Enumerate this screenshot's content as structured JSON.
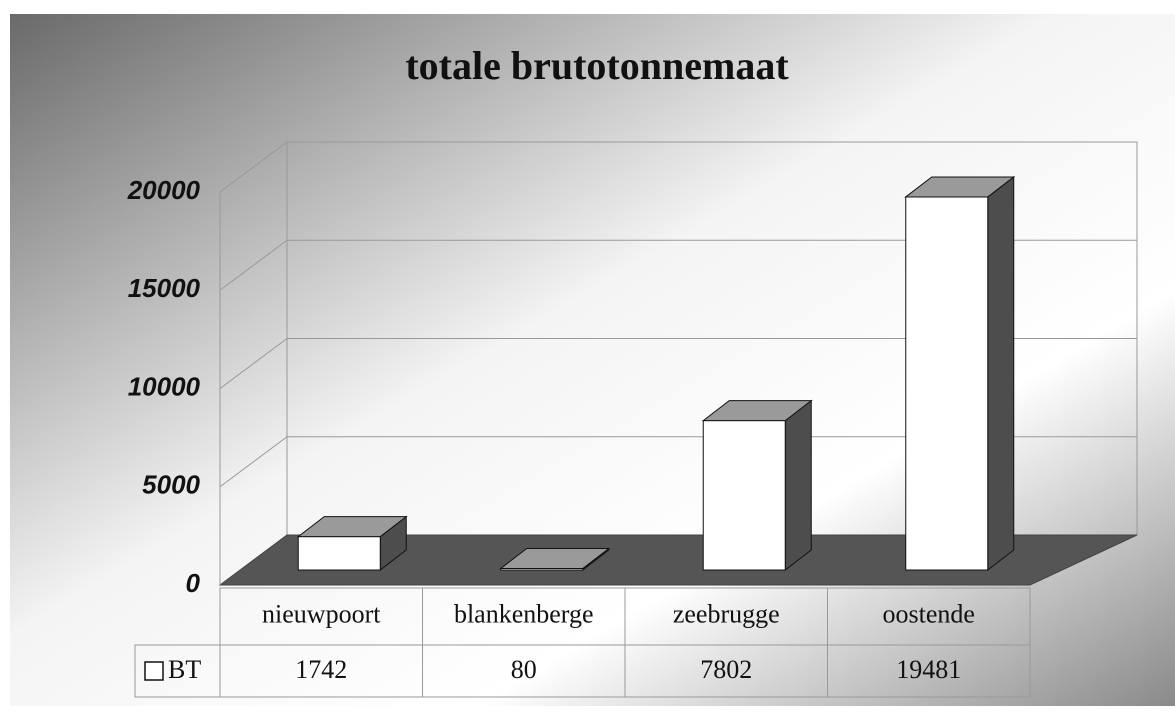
{
  "chart_data": {
    "type": "bar3d",
    "title": "totale brutotonnemaat",
    "categories": [
      "nieuwpoort",
      "blankenberge",
      "zeebrugge",
      "oostende"
    ],
    "series": [
      {
        "name": "BT",
        "color": "#ffffff",
        "values": [
          1742,
          80,
          7802,
          19481
        ]
      }
    ],
    "ylim": [
      0,
      20000
    ],
    "yticks": [
      0,
      5000,
      10000,
      15000,
      20000
    ],
    "grid": true
  }
}
